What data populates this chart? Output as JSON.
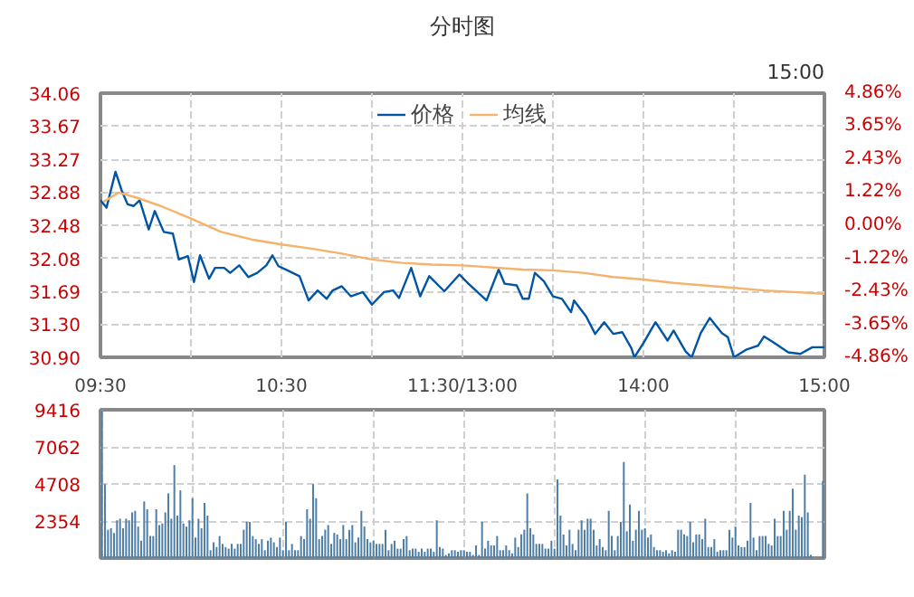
{
  "chart_data": [
    {
      "type": "line",
      "title": "分时图",
      "annotations": [
        "15:00"
      ],
      "legend": "top",
      "grid": true,
      "categories": [
        "09:30",
        null,
        null,
        null,
        null,
        null,
        null,
        null,
        null,
        null,
        null,
        null,
        null,
        null,
        null,
        null,
        null,
        null,
        null,
        null,
        null,
        null,
        null,
        null,
        null,
        null,
        null,
        null,
        null,
        null,
        null,
        null,
        null,
        null,
        null,
        null,
        null,
        null,
        null,
        null,
        null,
        null,
        null,
        null,
        null,
        null,
        null,
        null,
        null,
        null,
        null,
        null,
        null,
        null,
        null,
        null,
        null,
        null,
        null,
        null,
        "10:30",
        null,
        null,
        null,
        null,
        null,
        null,
        null,
        null,
        null,
        null,
        null,
        null,
        null,
        null,
        null,
        null,
        null,
        null,
        null,
        null,
        null,
        null,
        null,
        null,
        null,
        null,
        null,
        null,
        null,
        null,
        null,
        null,
        null,
        null,
        null,
        null,
        null,
        null,
        null,
        null,
        null,
        null,
        null,
        null,
        null,
        null,
        null,
        null,
        null,
        null,
        null,
        null,
        null,
        null,
        null,
        null,
        null,
        null,
        null,
        "11:30/13:00",
        null,
        null,
        null,
        null,
        null,
        null,
        null,
        null,
        null,
        null,
        null,
        null,
        null,
        null,
        null,
        null,
        null,
        null,
        null,
        null,
        null,
        null,
        null,
        null,
        null,
        null,
        null,
        null,
        null,
        null,
        null,
        null,
        null,
        null,
        null,
        null,
        null,
        null,
        null,
        null,
        null,
        null,
        null,
        null,
        null,
        null,
        null,
        null,
        null,
        null,
        null,
        null,
        null,
        null,
        null,
        null,
        null,
        null,
        null,
        "14:00",
        null,
        null,
        null,
        null,
        null,
        null,
        null,
        null,
        null,
        null,
        null,
        null,
        null,
        null,
        null,
        null,
        null,
        null,
        null,
        null,
        null,
        null,
        null,
        null,
        null,
        null,
        null,
        null,
        null,
        null,
        null,
        null,
        null,
        null,
        null,
        null,
        null,
        null,
        null,
        null,
        null,
        null,
        null,
        null,
        null,
        null,
        null,
        null,
        null,
        null,
        null,
        null,
        null,
        null,
        null,
        null,
        null,
        null,
        null,
        "15:00"
      ],
      "ylim": [
        30.9,
        34.06
      ],
      "yticks": [
        {
          "value": 30.9,
          "label": "30.90"
        },
        {
          "value": 31.3,
          "label": "31.30"
        },
        31.69,
        32.08,
        32.48,
        32.88,
        33.27,
        33.67,
        34.06
      ],
      "y2lim": [
        -4.86,
        4.86
      ],
      "y2ticks": [
        {
          "value": -4.86,
          "label": "-4.86%"
        },
        {
          "value": -3.65,
          "label": "-3.65%"
        },
        {
          "value": -2.43,
          "label": "-2.43%"
        },
        {
          "value": -1.22,
          "label": "-1.22%"
        },
        {
          "value": 0,
          "label": "0.00%"
        },
        {
          "value": 1.22,
          "label": "1.22%"
        },
        {
          "value": 2.43,
          "label": "2.43%"
        },
        {
          "value": 3.65,
          "label": "3.65%"
        },
        {
          "value": 4.86,
          "label": "4.86%"
        }
      ],
      "series": [
        {
          "name": "价格",
          "color": "#0055a5",
          "values": [
            32.78,
            null,
            32.69,
            null,
            null,
            33.12,
            null,
            32.9,
            null,
            32.73,
            null,
            32.71,
            null,
            32.78,
            null,
            null,
            32.43,
            null,
            32.65,
            null,
            null,
            32.4,
            null,
            null,
            32.38,
            null,
            32.07,
            null,
            null,
            32.11,
            null,
            31.8,
            null,
            32.12,
            null,
            null,
            31.84,
            null,
            31.97,
            null,
            null,
            31.97,
            null,
            31.91,
            null,
            null,
            32.0,
            null,
            null,
            31.86,
            null,
            null,
            31.91,
            null,
            null,
            32.0,
            null,
            32.12,
            null,
            31.99,
            null,
            null,
            31.94,
            null,
            null,
            null,
            31.87,
            null,
            null,
            31.58,
            null,
            null,
            31.7,
            null,
            null,
            31.6,
            null,
            31.7,
            null,
            null,
            31.75,
            null,
            null,
            31.63,
            null,
            null,
            null,
            31.68,
            null,
            null,
            31.53,
            null,
            null,
            null,
            31.68,
            null,
            null,
            31.7,
            null,
            31.61,
            null,
            null,
            null,
            31.97,
            null,
            null,
            31.63,
            null,
            null,
            31.87,
            null,
            null,
            null,
            null,
            31.69,
            null,
            null,
            null,
            null,
            31.89,
            null,
            null,
            31.78,
            null,
            null,
            null,
            null,
            null,
            31.58,
            null,
            null,
            null,
            31.95,
            null,
            31.78,
            null,
            null,
            null,
            31.76,
            null,
            31.6,
            null,
            31.6,
            null,
            31.91,
            null,
            null,
            31.81,
            null,
            null,
            31.63,
            null,
            null,
            31.6,
            null,
            null,
            31.44,
            31.58,
            null,
            null,
            null,
            31.39,
            null,
            null,
            31.18,
            null,
            null,
            31.32,
            null,
            null,
            31.18,
            null,
            null,
            31.2,
            null,
            null,
            31.01,
            30.9,
            null,
            null,
            31.07,
            null,
            null,
            null,
            31.32,
            null,
            null,
            null,
            31.1,
            null,
            31.22,
            null,
            null,
            null,
            30.97,
            null,
            30.9,
            null,
            null,
            31.19,
            null,
            null,
            31.37,
            null,
            null,
            null,
            31.19,
            null,
            31.14,
            null,
            30.9,
            null,
            null,
            null,
            30.99,
            null,
            null,
            null,
            31.04,
            null,
            31.15,
            null,
            null,
            31.08,
            null,
            null,
            null,
            null,
            30.96,
            null,
            null,
            null,
            30.94,
            null,
            null,
            null,
            31.02,
            null,
            null,
            null,
            31.02
          ]
        },
        {
          "name": "均线",
          "color": "#f5b26b",
          "values": [
            null,
            32.76,
            null,
            null,
            null,
            null,
            32.87,
            null,
            null,
            null,
            null,
            null,
            32.81,
            null,
            null,
            null,
            null,
            null,
            null,
            null,
            32.71,
            null,
            null,
            null,
            null,
            null,
            null,
            null,
            null,
            null,
            32.56,
            null,
            null,
            null,
            null,
            null,
            null,
            null,
            null,
            null,
            32.4,
            null,
            null,
            null,
            null,
            null,
            null,
            null,
            null,
            null,
            32.31,
            null,
            null,
            null,
            null,
            null,
            null,
            null,
            null,
            null,
            32.25,
            null,
            null,
            null,
            null,
            null,
            null,
            null,
            null,
            null,
            32.2,
            null,
            null,
            null,
            null,
            null,
            null,
            null,
            null,
            null,
            32.14,
            null,
            null,
            null,
            null,
            null,
            null,
            null,
            null,
            null,
            32.07,
            null,
            null,
            null,
            null,
            null,
            null,
            null,
            null,
            null,
            32.03,
            null,
            null,
            null,
            null,
            null,
            null,
            null,
            null,
            null,
            32.01,
            null,
            null,
            null,
            null,
            null,
            null,
            null,
            null,
            null,
            32.0,
            null,
            null,
            null,
            null,
            null,
            null,
            null,
            null,
            null,
            null,
            null,
            null,
            null,
            null,
            null,
            null,
            null,
            null,
            null,
            31.95,
            null,
            null,
            null,
            null,
            null,
            null,
            null,
            null,
            null,
            31.94,
            null,
            null,
            null,
            null,
            null,
            null,
            null,
            null,
            null,
            31.91,
            null,
            null,
            null,
            null,
            null,
            null,
            null,
            null,
            null,
            31.86,
            null,
            null,
            null,
            null,
            null,
            null,
            null,
            null,
            null,
            31.83,
            null,
            null,
            null,
            null,
            null,
            null,
            null,
            null,
            null,
            31.79,
            null,
            null,
            null,
            null,
            null,
            null,
            null,
            null,
            null,
            31.76,
            null,
            null,
            null,
            null,
            null,
            null,
            null,
            null,
            null,
            31.73,
            null,
            null,
            null,
            null,
            null,
            null,
            null,
            null,
            null,
            31.7,
            null,
            null,
            null,
            null,
            null,
            null,
            null,
            null,
            null,
            31.68,
            null,
            null,
            null,
            null,
            null,
            null,
            null,
            null,
            null,
            31.66
          ]
        }
      ]
    },
    {
      "type": "bar",
      "grid": true,
      "color": "#4f7ea6",
      "categories": [
        null,
        null,
        null,
        null,
        null,
        null,
        null,
        null,
        null,
        null,
        null,
        null,
        null,
        null,
        null,
        null,
        null,
        null,
        null,
        null,
        null,
        null,
        null,
        null,
        null,
        null,
        null,
        null,
        null,
        null,
        null,
        null,
        null,
        null,
        null,
        null,
        null,
        null,
        null,
        null,
        null,
        null,
        null,
        null,
        null,
        null,
        null,
        null,
        null,
        null,
        null,
        null,
        null,
        null,
        null,
        null,
        null,
        null,
        null,
        null,
        null,
        null,
        null,
        null,
        null,
        null,
        null,
        null,
        null,
        null,
        null,
        null,
        null,
        null,
        null,
        null,
        null,
        null,
        null,
        null,
        null,
        null,
        null,
        null,
        null,
        null,
        null,
        null,
        null,
        null,
        null,
        null,
        null,
        null,
        null,
        null,
        null,
        null,
        null,
        null,
        null,
        null,
        null,
        null,
        null,
        null,
        null,
        null,
        null,
        null,
        null,
        null,
        null,
        null,
        null,
        null,
        null,
        null,
        null,
        null,
        null,
        null,
        null,
        null,
        null,
        null,
        null,
        null,
        null,
        null,
        null,
        null,
        null,
        null,
        null,
        null,
        null,
        null,
        null,
        null,
        null,
        null,
        null,
        null,
        null,
        null,
        null,
        null,
        null,
        null,
        null,
        null,
        null,
        null,
        null,
        null,
        null,
        null,
        null,
        null,
        null,
        null,
        null,
        null,
        null,
        null,
        null,
        null,
        null,
        null,
        null,
        null,
        null,
        null,
        null,
        null,
        null,
        null,
        null,
        null,
        null,
        null,
        null,
        null,
        null,
        null,
        null,
        null,
        null,
        null,
        null,
        null,
        null,
        null,
        null,
        null,
        null,
        null,
        null,
        null,
        null,
        null,
        null,
        null,
        null,
        null,
        null,
        null,
        null,
        null,
        null,
        null,
        null,
        null,
        null,
        null,
        null,
        null,
        null,
        null,
        null,
        null,
        null,
        null,
        null,
        null,
        null,
        null,
        null,
        null,
        null,
        null,
        null,
        null,
        null,
        null,
        null,
        null,
        null,
        null
      ],
      "ylim": [
        0,
        9416
      ],
      "yticks": [
        2354,
        4708,
        7062,
        9416
      ],
      "values": [
        9400,
        4700,
        1800,
        1900,
        1600,
        2400,
        2500,
        1900,
        2500,
        2400,
        2900,
        3000,
        2000,
        1100,
        3600,
        3100,
        1400,
        1400,
        3100,
        2100,
        2200,
        2900,
        4100,
        2500,
        5900,
        2700,
        4300,
        2200,
        2000,
        2400,
        3800,
        1300,
        2500,
        1900,
        3500,
        2700,
        500,
        1000,
        700,
        1400,
        900,
        700,
        600,
        900,
        600,
        900,
        900,
        1800,
        2300,
        2300,
        1400,
        1200,
        900,
        1200,
        500,
        1100,
        1300,
        1000,
        700,
        1300,
        500,
        2300,
        500,
        900,
        500,
        500,
        1400,
        1200,
        3100,
        2500,
        4700,
        3800,
        1200,
        1400,
        1800,
        2100,
        900,
        1600,
        1500,
        1200,
        2100,
        1200,
        1800,
        2100,
        1000,
        1300,
        3000,
        2000,
        1200,
        1000,
        1100,
        900,
        900,
        900,
        1800,
        500,
        900,
        1100,
        600,
        600,
        1200,
        1400,
        500,
        600,
        600,
        400,
        600,
        400,
        600,
        600,
        400,
        2400,
        700,
        600,
        200,
        300,
        500,
        500,
        400,
        500,
        500,
        400,
        400,
        200,
        800,
        200,
        2300,
        600,
        1100,
        800,
        800,
        1400,
        500,
        500,
        800,
        500,
        300,
        1300,
        700,
        1500,
        1800,
        4100,
        1900,
        1500,
        900,
        900,
        900,
        600,
        600,
        1100,
        600,
        5000,
        2700,
        1500,
        800,
        1800,
        900,
        500,
        1800,
        2400,
        1800,
        2500,
        2500,
        1800,
        800,
        1200,
        700,
        500,
        3000,
        1400,
        500,
        1400,
        2300,
        6100,
        1700,
        3400,
        1100,
        1800,
        3000,
        1800,
        1900,
        1300,
        1500,
        700,
        500,
        500,
        400,
        500,
        300,
        500,
        400,
        1800,
        1800,
        1500,
        1400,
        2300,
        1000,
        1500,
        1500,
        1200,
        2500,
        700,
        700,
        1200,
        400,
        500,
        500,
        500,
        1800,
        1300,
        2000,
        800,
        700,
        700,
        1100,
        3500,
        1300,
        500,
        1400,
        1400,
        1400,
        900,
        800,
        2500,
        1400,
        1400,
        3000,
        1800,
        3000,
        4400,
        1800,
        2700,
        2600,
        5300,
        2900,
        200,
        null,
        null,
        null,
        4900
      ]
    }
  ]
}
